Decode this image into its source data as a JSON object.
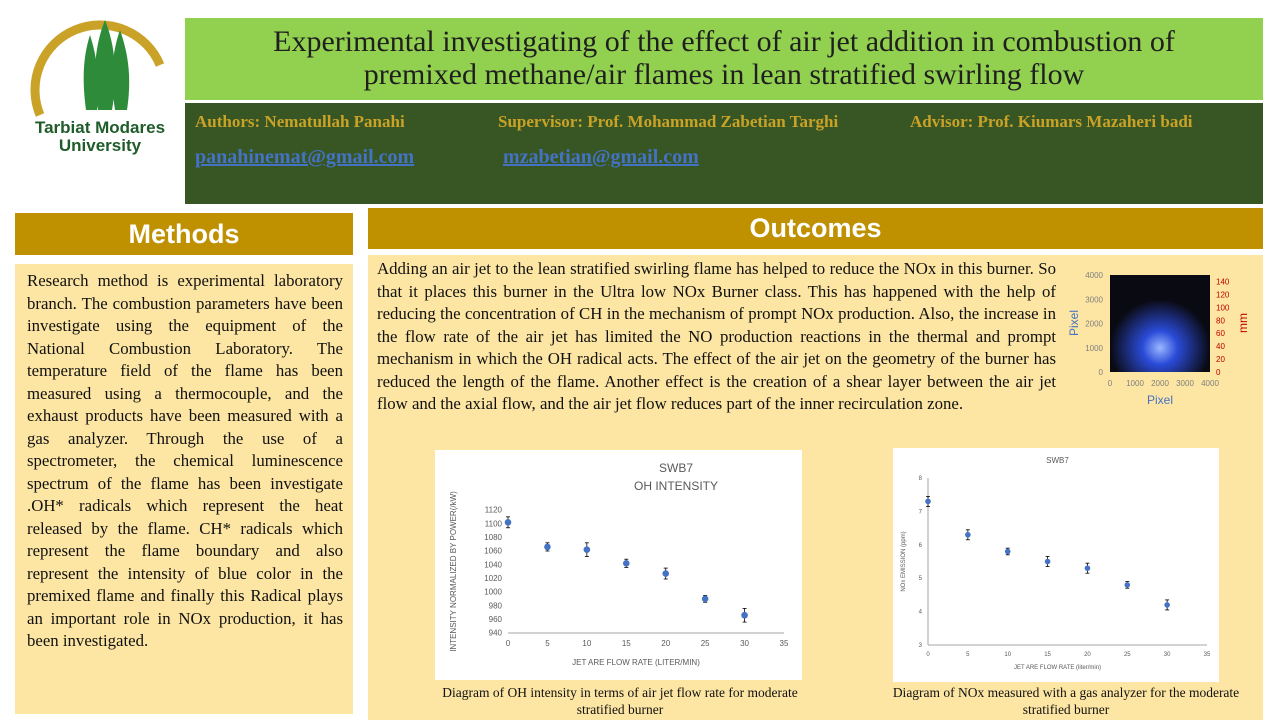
{
  "logo": {
    "line1": "Tarbiat Modares",
    "line2": "University"
  },
  "header": {
    "title": "Experimental investigating of the effect of air jet addition in combustion of premixed methane/air flames in lean stratified swirling flow",
    "authors": "Authors: Nematullah Panahi",
    "supervisor": "Supervisor: Prof.  Mohammad Zabetian Targhi",
    "advisor": "Advisor: Prof.  Kiumars Mazaheri badi",
    "emails": [
      "panahinemat@gmail.com",
      "mzabetian@gmail.com"
    ]
  },
  "methods": {
    "heading": "Methods",
    "text": "Research method is experimental laboratory branch. The combustion parameters have been investigate using the equipment of the National Combustion Laboratory. The temperature field of the flame has been measured using a thermocouple, and the exhaust products have been measured with a gas analyzer. Through the use of a spectrometer, the chemical luminescence spectrum of the flame has been investigate .OH* radicals which represent the heat released by the flame. CH* radicals which represent the flame boundary and also represent the intensity of blue color in the premixed flame and finally this Radical plays an important role in NOx production, it has been investigated."
  },
  "outcomes": {
    "heading": "Outcomes",
    "text": "Adding an air jet to the lean stratified swirling flame has helped to reduce the NOx in this burner. So that it places this burner in the Ultra low NOx Burner class. This has happened with the help of reducing the concentration of CH in the mechanism of prompt NOx production. Also, the increase in the flow rate of the air jet has limited the NO production reactions in the thermal and prompt mechanism in which the OH radical acts. The effect of the air jet on the geometry of the burner has reduced the length of the flame. Another effect is the creation of a shear layer between the air jet flow and the axial flow, and the air jet flow reduces part of the inner recirculation zone."
  },
  "flame_image": {
    "xlabel": "Pixel",
    "ylabel": "Pixel",
    "y2label": "mm",
    "xlim": [
      0,
      4000
    ],
    "xticks": [
      0,
      1000,
      2000,
      3000,
      4000
    ],
    "ylim": [
      0,
      4000
    ],
    "yticks": [
      0,
      1000,
      2000,
      3000,
      4000
    ],
    "y2lim": [
      0,
      150
    ],
    "y2ticks": [
      0,
      20,
      40,
      60,
      80,
      100,
      120,
      140
    ]
  },
  "chart_data": [
    {
      "type": "scatter",
      "title": "SWB7",
      "subtitle": "OH INTENSITY",
      "xlabel": "JET ARE FLOW RATE (LITER/MIN)",
      "ylabel": "INTENSITY NORMALIZED BY POWER(/kW)",
      "x": [
        0,
        5,
        10,
        15,
        20,
        25,
        30
      ],
      "values": [
        1102,
        1066,
        1062,
        1042,
        1027,
        990,
        966
      ],
      "errors": [
        8,
        6,
        10,
        6,
        8,
        5,
        10
      ],
      "color": "#4472c4",
      "xlim": [
        0,
        35
      ],
      "xticks": [
        0,
        5,
        10,
        15,
        20,
        25,
        30,
        35
      ],
      "ylim": [
        940,
        1120
      ],
      "yticks": [
        940,
        960,
        980,
        1000,
        1020,
        1040,
        1060,
        1080,
        1100,
        1120
      ],
      "caption": "Diagram of OH intensity in terms of air jet flow rate for moderate stratified burner"
    },
    {
      "type": "scatter",
      "title": "SWB7",
      "xlabel": "JET ARE FLOW RATE (liter/min)",
      "ylabel": "NOx EMISSION (ppm)",
      "x": [
        0,
        5,
        10,
        15,
        20,
        25,
        30
      ],
      "values": [
        7.3,
        6.3,
        5.8,
        5.5,
        5.3,
        4.8,
        4.2
      ],
      "errors": [
        0.15,
        0.15,
        0.1,
        0.15,
        0.15,
        0.1,
        0.15
      ],
      "color": "#4472c4",
      "xlim": [
        0,
        35
      ],
      "xticks": [
        0,
        5,
        10,
        15,
        20,
        25,
        30,
        35
      ],
      "ylim": [
        3,
        8
      ],
      "yticks": [
        3,
        4,
        5,
        6,
        7,
        8
      ],
      "caption": "Diagram of NOx measured with a gas analyzer for the moderate stratified burner"
    }
  ]
}
